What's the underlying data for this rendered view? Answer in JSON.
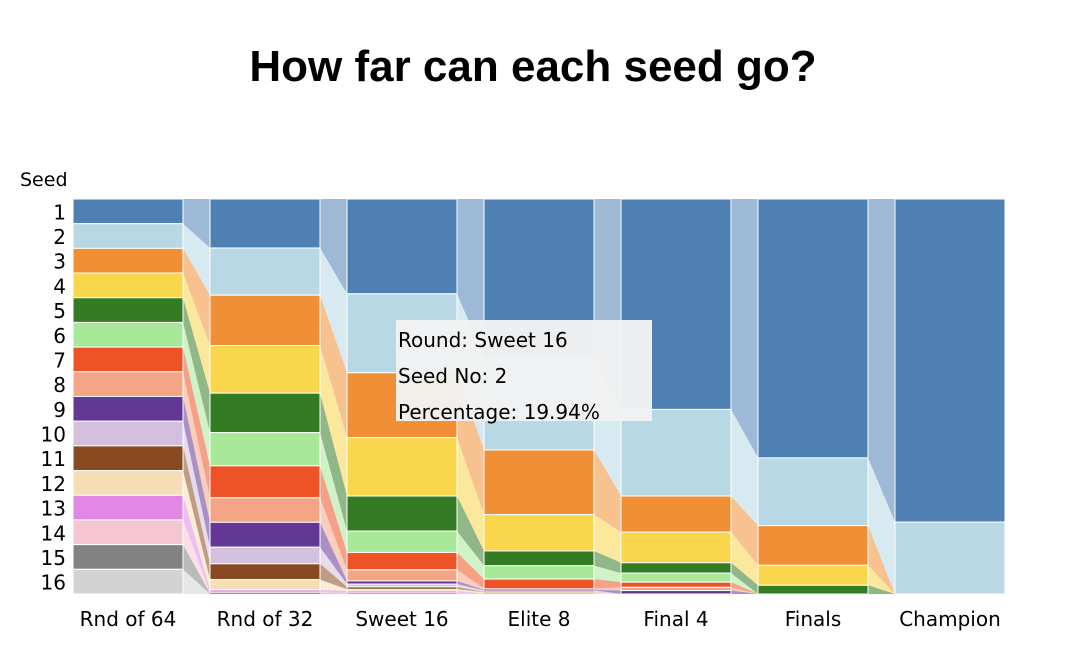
{
  "chart_data": {
    "type": "area",
    "title": "How far can each seed go?",
    "ylabel": "Seed",
    "seeds": [
      "1",
      "2",
      "3",
      "4",
      "5",
      "6",
      "7",
      "8",
      "9",
      "10",
      "11",
      "12",
      "13",
      "14",
      "15",
      "16"
    ],
    "rounds": [
      "Rnd of 64",
      "Rnd of 32",
      "Sweet 16",
      "Elite 8",
      "Final 4",
      "Finals",
      "Champion"
    ],
    "colors": [
      "#4e80b3",
      "#b8d8e6",
      "#f08f35",
      "#fad64d",
      "#347c24",
      "#a7e899",
      "#ee5227",
      "#f3a585",
      "#623796",
      "#d3c0dc",
      "#8a4a21",
      "#f6ddb6",
      "#e187e6",
      "#f3c6d1",
      "#828282",
      "#d3d3d3"
    ],
    "series": [
      {
        "name": "1",
        "values": [
          6.25,
          12.4,
          23.95,
          36.65,
          48.85,
          62.3,
          81.8
        ]
      },
      {
        "name": "2",
        "values": [
          6.25,
          11.95,
          19.94,
          21.35,
          20.1,
          16.3,
          18.2
        ]
      },
      {
        "name": "3",
        "values": [
          6.25,
          12.75,
          16.4,
          14.95,
          8.4,
          9.55,
          0
        ]
      },
      {
        "name": "4",
        "values": [
          6.25,
          12.05,
          14.75,
          8.4,
          7.1,
          4.8,
          0
        ]
      },
      {
        "name": "5",
        "values": [
          6.25,
          10.0,
          8.85,
          3.4,
          2.4,
          2.1,
          0
        ]
      },
      {
        "name": "6",
        "values": [
          6.25,
          8.4,
          5.4,
          3.1,
          2.1,
          0,
          0
        ]
      },
      {
        "name": "7",
        "values": [
          6.25,
          8.1,
          4.4,
          2.2,
          1.2,
          0,
          0
        ]
      },
      {
        "name": "8",
        "values": [
          6.25,
          6.2,
          2.8,
          0.3,
          0.75,
          0,
          0
        ]
      },
      {
        "name": "9",
        "values": [
          6.25,
          6.3,
          0.8,
          0.1,
          0.8,
          0,
          0
        ]
      },
      {
        "name": "10",
        "values": [
          6.25,
          4.2,
          0.7,
          0.4,
          0,
          0,
          0
        ]
      },
      {
        "name": "11",
        "values": [
          6.25,
          4.0,
          0.6,
          0.05,
          0,
          0,
          0
        ]
      },
      {
        "name": "12",
        "values": [
          6.25,
          2.6,
          0.4,
          0.3,
          0,
          0,
          0
        ]
      },
      {
        "name": "13",
        "values": [
          6.25,
          0.6,
          0.55,
          0.1,
          0,
          0,
          0
        ]
      },
      {
        "name": "14",
        "values": [
          6.25,
          0.25,
          0.15,
          0,
          0,
          0,
          0
        ]
      },
      {
        "name": "15",
        "values": [
          6.25,
          0.2,
          0.1,
          0,
          0,
          0,
          0
        ]
      },
      {
        "name": "16",
        "values": [
          6.25,
          0.0,
          0.0,
          0,
          0,
          0,
          0
        ]
      }
    ],
    "ylim": [
      0,
      100
    ],
    "grid": false,
    "tooltip": {
      "round_label": "Round: Sweet 16",
      "seed_label": "Seed No: 2",
      "percentage_label": "Percentage: 19.94%"
    }
  }
}
